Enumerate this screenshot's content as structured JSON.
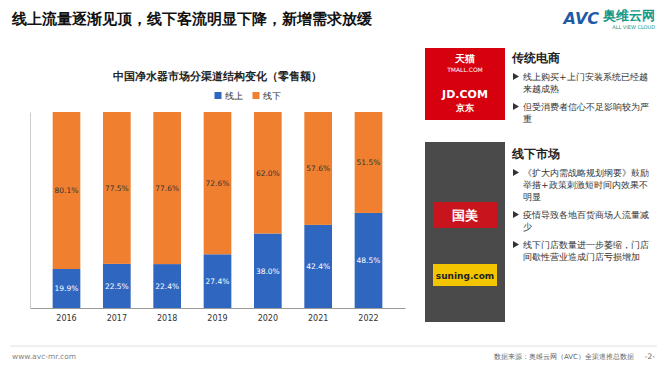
{
  "title": "线上流量逐渐见顶，线下客流明显下降，新增需求放缓",
  "logo": {
    "mark": "AVC",
    "name": "奥维云网",
    "subtitle": "ALL VIEW CLOUD"
  },
  "chart_data": {
    "type": "bar",
    "title": "中国净水器市场分渠道结构变化（零售额）",
    "categories": [
      "2016",
      "2017",
      "2018",
      "2019",
      "2020",
      "2021",
      "2022"
    ],
    "series": [
      {
        "name": "线上",
        "color": "#2f66c0",
        "values": [
          19.9,
          22.5,
          22.4,
          27.4,
          38.0,
          42.4,
          48.5
        ],
        "value_labels": [
          "19.9%",
          "22.5%",
          "22.4%",
          "27.4%",
          "38.0%",
          "42.4%",
          "48.5%"
        ]
      },
      {
        "name": "线下",
        "color": "#f0802f",
        "values": [
          80.1,
          77.5,
          77.6,
          72.6,
          62.0,
          57.6,
          51.5
        ],
        "value_labels": [
          "80.1%",
          "77.5%",
          "77.6%",
          "72.6%",
          "62.0%",
          "57.6%",
          "51.5%"
        ]
      }
    ],
    "stacked": true,
    "data_labels": true,
    "legend": "top",
    "grid": false,
    "tick_labels": "x",
    "ylim": [
      0,
      100
    ]
  },
  "panels": [
    {
      "heading": "传统电商",
      "image_texts": [
        "天猫",
        "TMALL.COM",
        "JD.COM",
        "京东"
      ],
      "bullets": [
        "线上购买+上门安装系统已经越来越成熟",
        "但受消费者信心不足影响较为严重"
      ]
    },
    {
      "heading": "线下市场",
      "image_texts": [
        "国美",
        "suning.com"
      ],
      "bullets": [
        "《扩大内需战略规划纲要》鼓励举措+政策刺激短时间内效果不明显",
        "疫情导致各地百货商场人流量减少",
        "线下门店数量进一步萎缩，门店间歇性营业造成门店亏损增加"
      ]
    }
  ],
  "footer": {
    "website": "www.avc-mr.com",
    "source": "数据来源：奥维云网（AVC）全渠道推总数据",
    "page": "-2-"
  }
}
